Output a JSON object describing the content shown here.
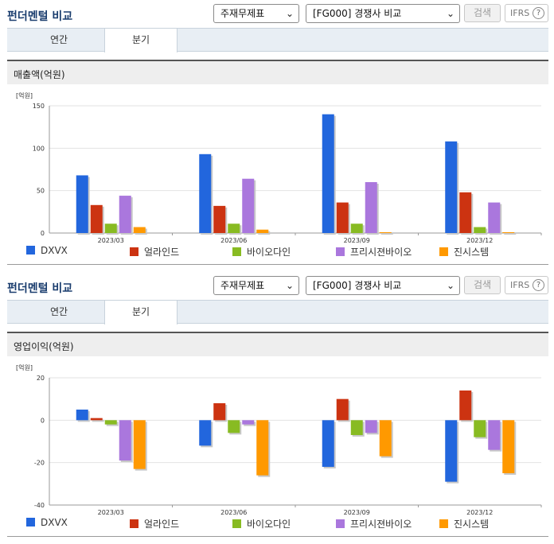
{
  "panels": [
    {
      "title": "펀더멘털 비교",
      "select_type": "주재무제표",
      "select_compare": "[FG000] 경쟁사 비교",
      "search_label": "검색",
      "ifrs_label": "IFRS",
      "help_label": "?",
      "tabs": [
        {
          "label": "연간"
        },
        {
          "label": "분기"
        }
      ],
      "active_tab": 1,
      "subtitle": "매출액(억원)",
      "chart_data": {
        "type": "bar",
        "unit": "[억원]",
        "categories": [
          "2023/03",
          "2023/06",
          "2023/09",
          "2023/12"
        ],
        "ylim": [
          0,
          150
        ],
        "yticks": [
          0,
          50,
          100,
          150
        ],
        "grid": true,
        "legend_position": "bottom",
        "series": [
          {
            "name": "DXVX",
            "color": "#2266dd",
            "values": [
              68,
              93,
              140,
              108
            ]
          },
          {
            "name": "얼라인드",
            "color": "#cc3311",
            "values": [
              33,
              32,
              36,
              48
            ]
          },
          {
            "name": "바이오다인",
            "color": "#88bb22",
            "values": [
              11,
              11,
              11,
              7
            ]
          },
          {
            "name": "프리시젼바이오",
            "color": "#aa77dd",
            "values": [
              44,
              64,
              60,
              36
            ]
          },
          {
            "name": "진시스템",
            "color": "#ff9900",
            "values": [
              7,
              4,
              1,
              1
            ]
          }
        ]
      }
    },
    {
      "title": "펀더멘털 비교",
      "select_type": "주재무제표",
      "select_compare": "[FG000] 경쟁사 비교",
      "search_label": "검색",
      "ifrs_label": "IFRS",
      "help_label": "?",
      "tabs": [
        {
          "label": "연간"
        },
        {
          "label": "분기"
        }
      ],
      "active_tab": 1,
      "subtitle": "영업이익(억원)",
      "chart_data": {
        "type": "bar",
        "unit": "[억원]",
        "categories": [
          "2023/03",
          "2023/06",
          "2023/09",
          "2023/12"
        ],
        "ylim": [
          -40,
          20
        ],
        "yticks": [
          -40,
          -20,
          0,
          20
        ],
        "grid": true,
        "legend_position": "bottom",
        "series": [
          {
            "name": "DXVX",
            "color": "#2266dd",
            "values": [
              5,
              -12,
              -22,
              -29
            ]
          },
          {
            "name": "얼라인드",
            "color": "#cc3311",
            "values": [
              1,
              8,
              10,
              14
            ]
          },
          {
            "name": "바이오다인",
            "color": "#88bb22",
            "values": [
              -2,
              -6,
              -7,
              -8
            ]
          },
          {
            "name": "프리시젼바이오",
            "color": "#aa77dd",
            "values": [
              -19,
              -2,
              -6,
              -14
            ]
          },
          {
            "name": "진시스템",
            "color": "#ff9900",
            "values": [
              -23,
              -26,
              -17,
              -25
            ]
          }
        ]
      }
    }
  ]
}
